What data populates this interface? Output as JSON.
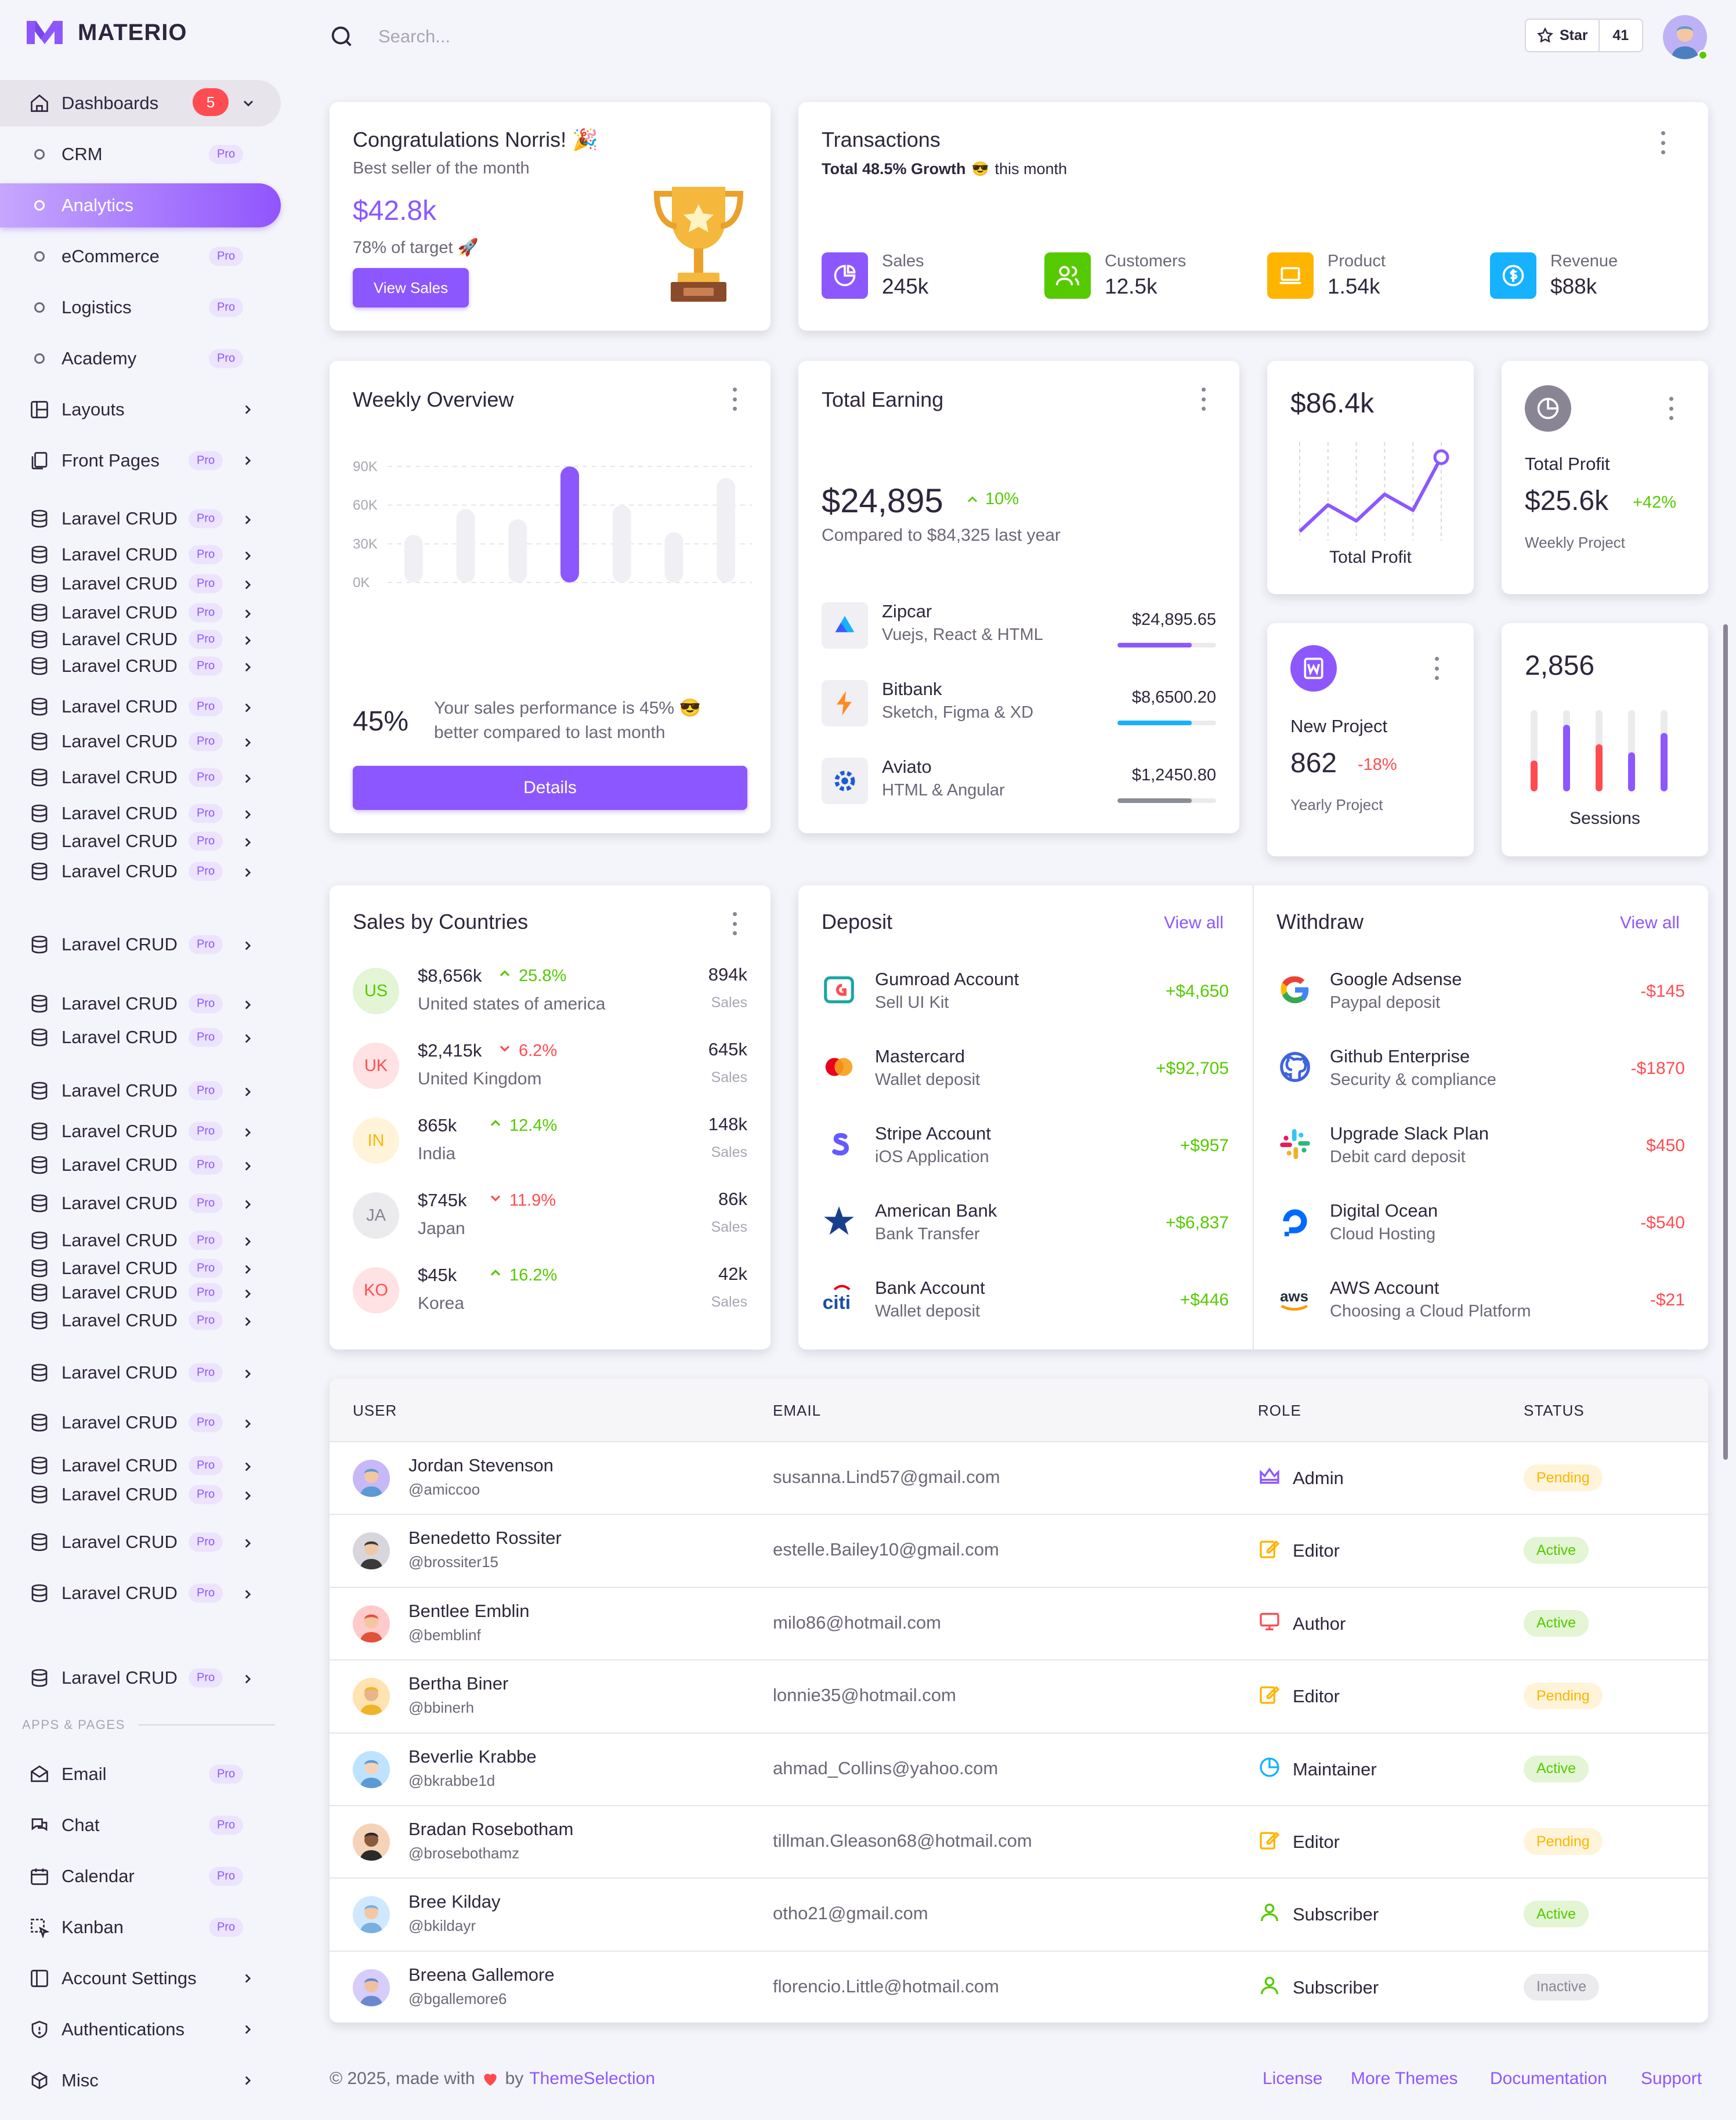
{
  "app": {
    "name": "MATERIO"
  },
  "colors": {
    "primary": "#8c57ff",
    "success": "#56ca00",
    "error": "#ff4c51",
    "warning": "#ffb400",
    "info": "#16b1ff"
  },
  "search": {
    "placeholder": "Search..."
  },
  "github": {
    "star_label": "Star",
    "count": "41"
  },
  "sidebar": {
    "dashboards": {
      "label": "Dashboards",
      "badge": "5"
    },
    "dash_children": [
      {
        "label": "CRM",
        "pro": "Pro"
      },
      {
        "label": "Analytics"
      },
      {
        "label": "eCommerce",
        "pro": "Pro"
      },
      {
        "label": "Logistics",
        "pro": "Pro"
      },
      {
        "label": "Academy",
        "pro": "Pro"
      }
    ],
    "layouts": "Layouts",
    "front_pages": {
      "label": "Front Pages",
      "pro": "Pro"
    },
    "crud_label": "Laravel CRUD",
    "pro": "Pro",
    "section": "APPS & PAGES",
    "apps": [
      {
        "label": "Email",
        "pro": "Pro"
      },
      {
        "label": "Chat",
        "pro": "Pro"
      },
      {
        "label": "Calendar",
        "pro": "Pro"
      },
      {
        "label": "Kanban",
        "pro": "Pro"
      },
      {
        "label": "Account Settings"
      },
      {
        "label": "Authentications"
      },
      {
        "label": "Misc"
      }
    ]
  },
  "congrats": {
    "title": "Congratulations Norris! 🎉",
    "subtitle": "Best seller of the month",
    "amount": "$42.8k",
    "target": "78% of target 🚀",
    "button": "View Sales"
  },
  "transactions": {
    "title": "Transactions",
    "growth": "Total 48.5% Growth",
    "emoji": "😎",
    "period": "this month",
    "stats": [
      {
        "label": "Sales",
        "value": "245k",
        "icon": "pie-chart-icon",
        "color": "#8c57ff"
      },
      {
        "label": "Customers",
        "value": "12.5k",
        "icon": "users-icon",
        "color": "#56ca00"
      },
      {
        "label": "Product",
        "value": "1.54k",
        "icon": "laptop-icon",
        "color": "#ffb400"
      },
      {
        "label": "Revenue",
        "value": "$88k",
        "icon": "dollar-icon",
        "color": "#16b1ff"
      }
    ]
  },
  "weekly": {
    "title": "Weekly Overview",
    "percent": "45%",
    "text": "Your sales performance is 45% 😎 better compared to last month",
    "button": "Details"
  },
  "chart_data": {
    "type": "bar",
    "categories": [
      "",
      "",
      "",
      "",
      "",
      "",
      ""
    ],
    "values": [
      37,
      57,
      49,
      90,
      60,
      39,
      81
    ],
    "highlight_index": 3,
    "yticks": [
      "90K",
      "60K",
      "30K",
      "0K"
    ],
    "ylim": [
      0,
      90
    ],
    "grid": true
  },
  "earning": {
    "title": "Total Earning",
    "amount": "$24,895",
    "change": "10%",
    "compare": "Compared to $84,325 last year",
    "items": [
      {
        "name": "Zipcar",
        "desc": "Vuejs, React & HTML",
        "amount": "$24,895.65",
        "progress": 0.75,
        "color": "#8c57ff"
      },
      {
        "name": "Bitbank",
        "desc": "Sketch, Figma & XD",
        "amount": "$8,6500.20",
        "progress": 0.75,
        "color": "#16b1ff"
      },
      {
        "name": "Aviato",
        "desc": "HTML & Angular",
        "amount": "$1,2450.80",
        "progress": 0.75,
        "color": "#8a8d93"
      }
    ]
  },
  "profit_line": {
    "value": "$86.4k",
    "label": "Total Profit",
    "points": [
      10,
      35,
      20,
      45,
      30,
      80
    ]
  },
  "profit_card": {
    "title": "Total Profit",
    "value": "$25.6k",
    "change": "+42%",
    "sub": "Weekly Project"
  },
  "new_project": {
    "title": "New Project",
    "value": "862",
    "change": "-18%",
    "sub": "Yearly Project"
  },
  "sessions": {
    "value": "2,856",
    "label": "Sessions",
    "bars": [
      {
        "level": 0.38,
        "color": "#ff4c51"
      },
      {
        "level": 0.82,
        "color": "#8c57ff"
      },
      {
        "level": 0.58,
        "color": "#ff4c51"
      },
      {
        "level": 0.48,
        "color": "#8c57ff"
      },
      {
        "level": 0.72,
        "color": "#8c57ff"
      }
    ]
  },
  "countries": {
    "title": "Sales by Countries",
    "items": [
      {
        "code": "US",
        "amount": "$8,656k",
        "change": "25.8%",
        "up": true,
        "name": "United states of america",
        "sales": "894k",
        "sales_label": "Sales",
        "bg": "#e3f5d4",
        "fg": "#56ca00"
      },
      {
        "code": "UK",
        "amount": "$2,415k",
        "change": "6.2%",
        "up": false,
        "name": "United Kingdom",
        "sales": "645k",
        "sales_label": "Sales",
        "bg": "#ffe2e3",
        "fg": "#ff4c51"
      },
      {
        "code": "IN",
        "amount": "865k",
        "change": "12.4%",
        "up": true,
        "name": "India",
        "sales": "148k",
        "sales_label": "Sales",
        "bg": "#fff4d9",
        "fg": "#ffb400"
      },
      {
        "code": "JA",
        "amount": "$745k",
        "change": "11.9%",
        "up": false,
        "name": "Japan",
        "sales": "86k",
        "sales_label": "Sales",
        "bg": "#ebeaed",
        "fg": "#8a8595"
      },
      {
        "code": "KO",
        "amount": "$45k",
        "change": "16.2%",
        "up": true,
        "name": "Korea",
        "sales": "42k",
        "sales_label": "Sales",
        "bg": "#ffe2e3",
        "fg": "#ff4c51"
      }
    ]
  },
  "deposit": {
    "title": "Deposit",
    "view_all": "View all",
    "items": [
      {
        "name": "Gumroad Account",
        "desc": "Sell UI Kit",
        "amount": "+$4,650",
        "icon": "gumroad-icon"
      },
      {
        "name": "Mastercard",
        "desc": "Wallet deposit",
        "amount": "+$92,705",
        "icon": "mastercard-icon"
      },
      {
        "name": "Stripe Account",
        "desc": "iOS Application",
        "amount": "+$957",
        "icon": "stripe-icon"
      },
      {
        "name": "American Bank",
        "desc": "Bank Transfer",
        "amount": "+$6,837",
        "icon": "american-bank-icon"
      },
      {
        "name": "Bank Account",
        "desc": "Wallet deposit",
        "amount": "+$446",
        "icon": "citi-icon"
      }
    ]
  },
  "withdraw": {
    "title": "Withdraw",
    "view_all": "View all",
    "items": [
      {
        "name": "Google Adsense",
        "desc": "Paypal deposit",
        "amount": "-$145",
        "icon": "google-icon"
      },
      {
        "name": "Github Enterprise",
        "desc": "Security & compliance",
        "amount": "-$1870",
        "icon": "github-icon"
      },
      {
        "name": "Upgrade Slack Plan",
        "desc": "Debit card deposit",
        "amount": "$450",
        "icon": "slack-icon"
      },
      {
        "name": "Digital Ocean",
        "desc": "Cloud Hosting",
        "amount": "-$540",
        "icon": "digital-ocean-icon"
      },
      {
        "name": "AWS Account",
        "desc": "Choosing a Cloud Platform",
        "amount": "-$21",
        "icon": "aws-icon"
      }
    ]
  },
  "users_table": {
    "headers": [
      "USER",
      "EMAIL",
      "ROLE",
      "STATUS"
    ],
    "rows": [
      {
        "name": "Jordan Stevenson",
        "username": "@amiccoo",
        "email": "susanna.Lind57@gmail.com",
        "role": "Admin",
        "role_icon": "crown-icon",
        "role_color": "#8c57ff",
        "status": "Pending"
      },
      {
        "name": "Benedetto Rossiter",
        "username": "@brossiter15",
        "email": "estelle.Bailey10@gmail.com",
        "role": "Editor",
        "role_icon": "edit-icon",
        "role_color": "#ffb400",
        "status": "Active"
      },
      {
        "name": "Bentlee Emblin",
        "username": "@bemblinf",
        "email": "milo86@hotmail.com",
        "role": "Author",
        "role_icon": "monitor-icon",
        "role_color": "#ff4c51",
        "status": "Active"
      },
      {
        "name": "Bertha Biner",
        "username": "@bbinerh",
        "email": "lonnie35@hotmail.com",
        "role": "Editor",
        "role_icon": "edit-icon",
        "role_color": "#ffb400",
        "status": "Pending"
      },
      {
        "name": "Beverlie Krabbe",
        "username": "@bkrabbe1d",
        "email": "ahmad_Collins@yahoo.com",
        "role": "Maintainer",
        "role_icon": "pie-icon",
        "role_color": "#16b1ff",
        "status": "Active"
      },
      {
        "name": "Bradan Rosebotham",
        "username": "@brosebothamz",
        "email": "tillman.Gleason68@hotmail.com",
        "role": "Editor",
        "role_icon": "edit-icon",
        "role_color": "#ffb400",
        "status": "Pending"
      },
      {
        "name": "Bree Kilday",
        "username": "@bkildayr",
        "email": "otho21@gmail.com",
        "role": "Subscriber",
        "role_icon": "user-icon",
        "role_color": "#56ca00",
        "status": "Active"
      },
      {
        "name": "Breena Gallemore",
        "username": "@bgallemore6",
        "email": "florencio.Little@hotmail.com",
        "role": "Subscriber",
        "role_icon": "user-icon",
        "role_color": "#56ca00",
        "status": "Inactive"
      }
    ]
  },
  "footer": {
    "copyright": "© 2025, made with",
    "by": "by",
    "brand": "ThemeSelection",
    "links": [
      "License",
      "More Themes",
      "Documentation",
      "Support"
    ]
  }
}
